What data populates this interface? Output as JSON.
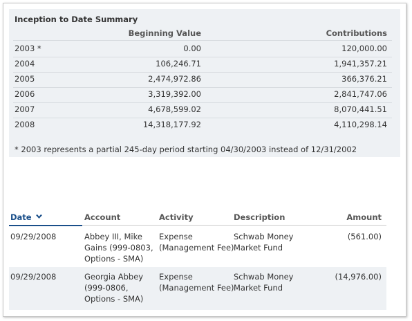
{
  "summary": {
    "title": "Inception to Date Summary",
    "headers": {
      "beginning_value": "Beginning Value",
      "contributions": "Contributions"
    },
    "rows": [
      [
        "2003 *",
        "0.00",
        "120,000.00"
      ],
      [
        "2004",
        "106,246.71",
        "1,941,357.21"
      ],
      [
        "2005",
        "2,474,972.86",
        "366,376.21"
      ],
      [
        "2006",
        "3,319,392.00",
        "2,841,747.06"
      ],
      [
        "2007",
        "4,678,599.02",
        "8,070,441.51"
      ],
      [
        "2008",
        "14,318,177.92",
        "4,110,298.14"
      ]
    ],
    "footnote": "* 2003 represents a partial 245-day period starting 04/30/2003 instead of 12/31/2002"
  },
  "transactions": {
    "columns": [
      "Date",
      "Account",
      "Activity",
      "Description",
      "Amount"
    ],
    "rows": [
      [
        "09/29/2008",
        "Abbey III, Mike Gains (999-0803, Options - SMA)",
        "Expense (Management Fee)",
        "Schwab Money Market Fund",
        "(561.00)"
      ],
      [
        "09/29/2008",
        "Georgia Abbey (999-0806, Options - SMA)",
        "Expense (Management Fee)",
        "Schwab Money Market Fund",
        "(14,976.00)"
      ]
    ]
  }
}
